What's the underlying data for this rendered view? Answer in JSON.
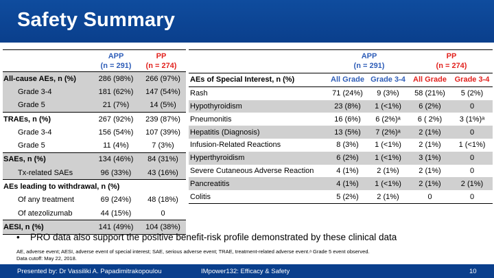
{
  "title": "Safety Summary",
  "left": {
    "app_label": "APP",
    "app_n": "(n = 291)",
    "pp_label": "PP",
    "pp_n": "(n = 274)",
    "rows": [
      {
        "label": "All-cause AEs, n (%)",
        "app": "286 (98%)",
        "pp": "266 (97%)"
      },
      {
        "label": "Grade 3-4",
        "app": "181 (62%)",
        "pp": "147 (54%)"
      },
      {
        "label": "Grade 5",
        "app": "21 (7%)",
        "pp": "14 (5%)"
      },
      {
        "label": "TRAEs, n (%)",
        "app": "267 (92%)",
        "pp": "239 (87%)"
      },
      {
        "label": "Grade 3-4",
        "app": "156 (54%)",
        "pp": "107 (39%)"
      },
      {
        "label": "Grade 5",
        "app": "11 (4%)",
        "pp": "7 (3%)"
      },
      {
        "label": "SAEs, n (%)",
        "app": "134 (46%)",
        "pp": "84 (31%)"
      },
      {
        "label": "Tx-related SAEs",
        "app": "96 (33%)",
        "pp": "43 (16%)"
      },
      {
        "label": "AEs leading to withdrawal, n (%)",
        "app": "",
        "pp": ""
      },
      {
        "label": "Of any treatment",
        "app": "69 (24%)",
        "pp": "48 (18%)"
      },
      {
        "label": "Of atezolizumab",
        "app": "44 (15%)",
        "pp": "0"
      },
      {
        "label": "AESI, n (%)",
        "app": "141 (49%)",
        "pp": "104 (38%)"
      }
    ]
  },
  "right": {
    "app_label": "APP",
    "app_n": "(n = 291)",
    "pp_label": "PP",
    "pp_n": "(n = 274)",
    "header": {
      "label": "AEs of Special Interest, n (%)",
      "app_all": "All Grade",
      "app_g34": "Grade 3-4",
      "pp_all": "All Grade",
      "pp_g34": "Grade 3-4"
    },
    "rows": [
      {
        "label": "Rash",
        "c1": "71 (24%)",
        "c2": "9 (3%)",
        "c3": "58 (21%)",
        "c4": "5 (2%)"
      },
      {
        "label": "Hypothyroidism",
        "c1": "23 (8%)",
        "c2": "1 (<1%)",
        "c3": "6 (2%)",
        "c4": "0"
      },
      {
        "label": "Pneumonitis",
        "c1": "16 (6%)",
        "c2": "6 (2%)ᵃ",
        "c3": "6 ( 2%)",
        "c4": "3 (1%)ᵃ"
      },
      {
        "label": "Hepatitis (Diagnosis)",
        "c1": "13 (5%)",
        "c2": "7 (2%)ᵃ",
        "c3": "2 (1%)",
        "c4": "0"
      },
      {
        "label": "Infusion-Related Reactions",
        "c1": "8 (3%)",
        "c2": "1 (<1%)",
        "c3": "2 (1%)",
        "c4": "1 (<1%)"
      },
      {
        "label": "Hyperthyroidism",
        "c1": "6 (2%)",
        "c2": "1 (<1%)",
        "c3": "3 (1%)",
        "c4": "0"
      },
      {
        "label": "Severe Cutaneous Adverse Reaction",
        "c1": "4 (1%)",
        "c2": "2 (1%)",
        "c3": "2 (1%)",
        "c4": "0"
      },
      {
        "label": "Pancreatitis",
        "c1": "4 (1%)",
        "c2": "1 (<1%)",
        "c3": "2 (1%)",
        "c4": "2 (1%)"
      },
      {
        "label": "Colitis",
        "c1": "5 (2%)",
        "c2": "2 (1%)",
        "c3": "0",
        "c4": "0"
      }
    ]
  },
  "bullet": "PRO data also support the positive benefit-risk profile demonstrated by these clinical data",
  "footnote_1": "AE, adverse event; AESI, adverse event of special interest; SAE, serious adverse event; TRAE, treatment-related adverse event.ᵃ Grade 5 event observed.",
  "footnote_2": "Data cutoff: May 22, 2018.",
  "footer": {
    "presenter": "Presented by: Dr Vassiliki A. Papadimitrakopoulou",
    "study": "IMpower132: Efficacy & Safety",
    "page": "10"
  },
  "colors": {
    "header_blue": "#0a3f8c",
    "app_blue": "#2e5db8",
    "pp_red": "#e2221e",
    "shade": "#d0d0d0"
  }
}
